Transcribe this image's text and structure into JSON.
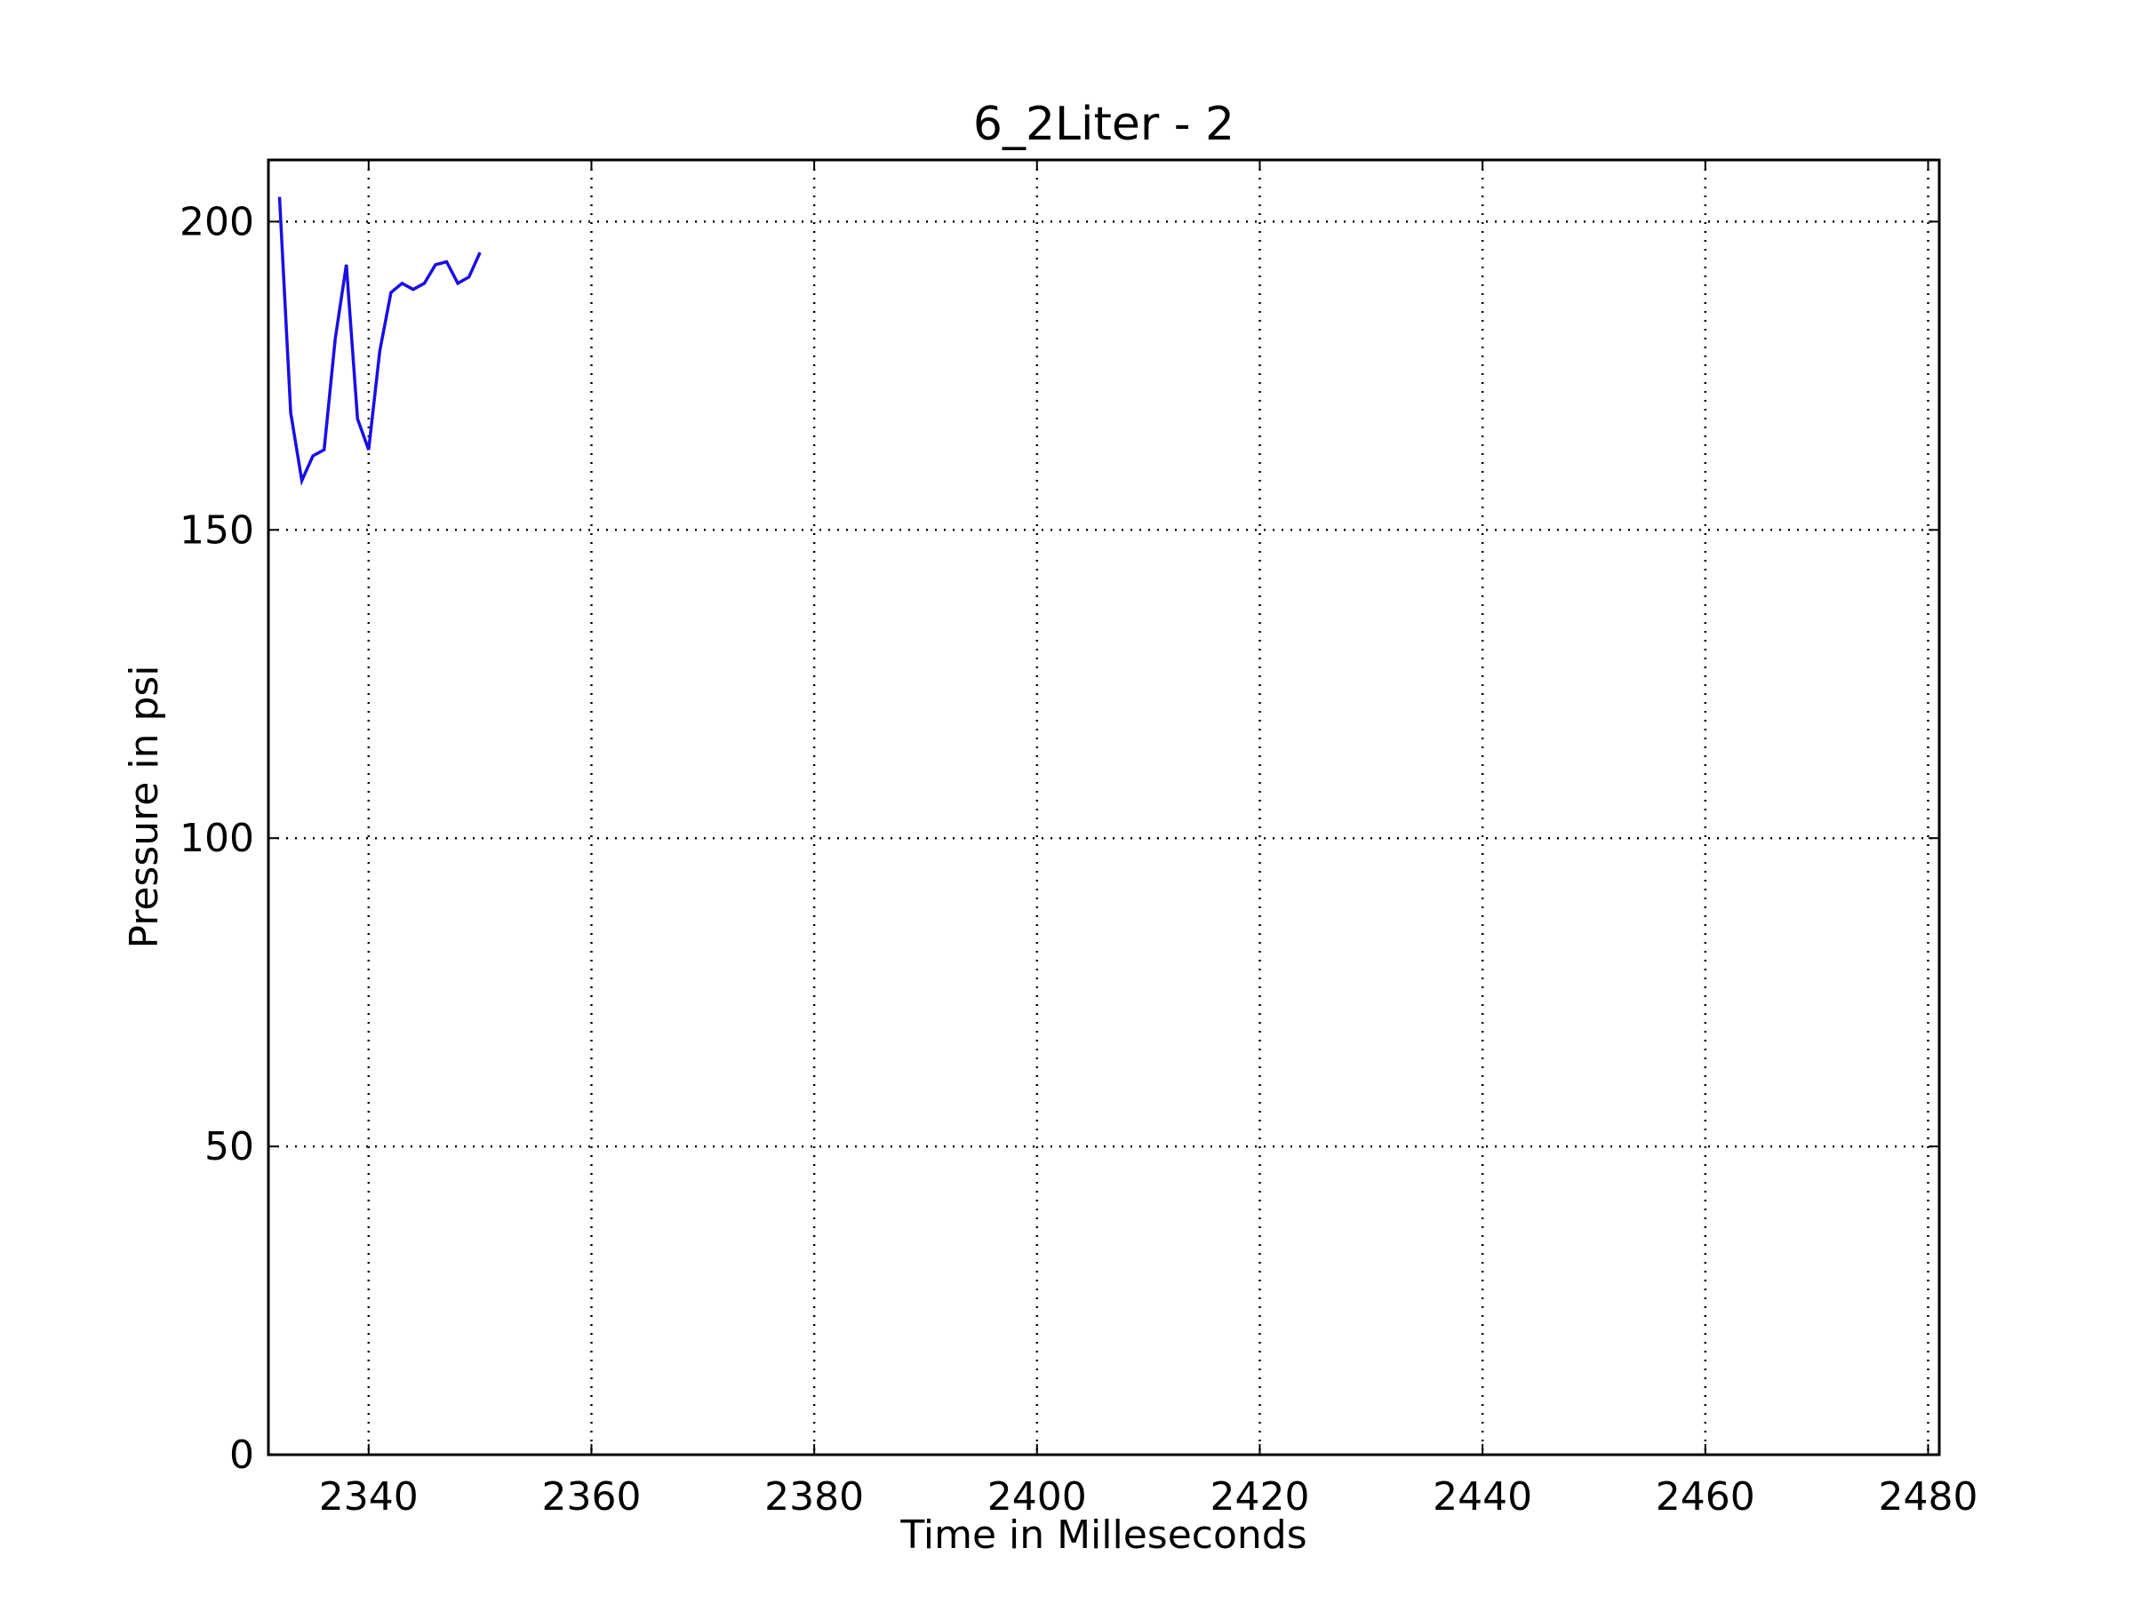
{
  "chart_data": {
    "type": "line",
    "title": "6_2Liter - 2",
    "xlabel": "Time in Milleseconds",
    "ylabel": "Pressure in psi",
    "xlim": [
      2331,
      2481
    ],
    "ylim": [
      0,
      210
    ],
    "xticks": [
      2340,
      2360,
      2380,
      2400,
      2420,
      2440,
      2460,
      2480
    ],
    "yticks": [
      0,
      50,
      100,
      150,
      200
    ],
    "grid": true,
    "colors": {
      "series": "#1a0de6",
      "axes": "#000000",
      "background": "#ffffff"
    },
    "series": [
      {
        "x": [
          2332,
          2333,
          2334,
          2335,
          2336,
          2337,
          2338,
          2339,
          2340,
          2341,
          2342,
          2343,
          2344,
          2345,
          2346,
          2347,
          2348,
          2349,
          2350
        ],
        "y": [
          204,
          169,
          158,
          162,
          163,
          181,
          193,
          168,
          163,
          179,
          188.5,
          190,
          189,
          190,
          193,
          193.5,
          190,
          191,
          195
        ]
      }
    ]
  }
}
